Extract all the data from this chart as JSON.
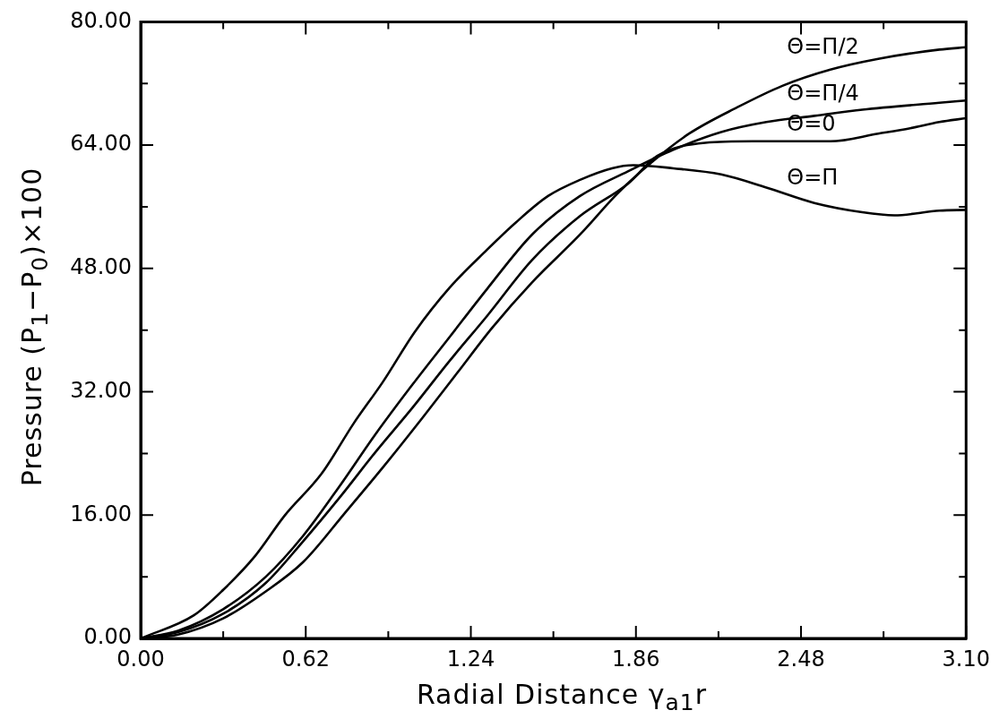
{
  "chart_data": {
    "type": "line",
    "xlabel": "Radial Distance γ$_{a1}$r",
    "ylabel": "Pressure (P$_{1}$−P$_{0}$)×100",
    "xlim": [
      0,
      3.1
    ],
    "ylim": [
      0,
      80
    ],
    "xticks": [
      {
        "value": 0,
        "label": "0.00"
      },
      {
        "value": 0.31,
        "label": null
      },
      {
        "value": 0.62,
        "label": "0.62"
      },
      {
        "value": 0.93,
        "label": null
      },
      {
        "value": 1.24,
        "label": "1.24"
      },
      {
        "value": 1.55,
        "label": null
      },
      {
        "value": 1.86,
        "label": "1.86"
      },
      {
        "value": 2.17,
        "label": null
      },
      {
        "value": 2.48,
        "label": "2.48"
      },
      {
        "value": 2.79,
        "label": null
      },
      {
        "value": 3.1,
        "label": "3.10"
      }
    ],
    "yticks": [
      {
        "value": 0,
        "label": "0.00"
      },
      {
        "value": 8,
        "label": null
      },
      {
        "value": 16,
        "label": "16.00"
      },
      {
        "value": 24,
        "label": null
      },
      {
        "value": 32,
        "label": "32.00"
      },
      {
        "value": 40,
        "label": null
      },
      {
        "value": 48,
        "label": "48.00"
      },
      {
        "value": 56,
        "label": null
      },
      {
        "value": 64,
        "label": "64.00"
      },
      {
        "value": 72,
        "label": null
      },
      {
        "value": 80,
        "label": "80.00"
      }
    ],
    "grid": false,
    "legend": "top right",
    "marker": "none",
    "line_style": "solid",
    "series": [
      {
        "name": "Θ=Π/2",
        "color": "#000000",
        "x": [
          0,
          0.14,
          0.31,
          0.47,
          0.61,
          0.77,
          0.91,
          1.06,
          1.19,
          1.32,
          1.47,
          1.65,
          1.79,
          1.92,
          2.06,
          2.24,
          2.41,
          2.59,
          2.77,
          3.0,
          3.1
        ],
        "values": [
          0,
          0.5,
          2.6,
          6.1,
          9.9,
          16.4,
          22.2,
          28.7,
          34.5,
          40.3,
          46.2,
          52.4,
          57.7,
          61.8,
          65.5,
          68.9,
          71.7,
          73.8,
          75.2,
          76.4,
          76.7
        ]
      },
      {
        "name": "Θ=Π/4",
        "color": "#000000",
        "x": [
          0,
          0.14,
          0.31,
          0.47,
          0.61,
          0.75,
          0.88,
          1.02,
          1.16,
          1.3,
          1.47,
          1.65,
          1.83,
          2.0,
          2.18,
          2.35,
          2.53,
          2.71,
          3.0,
          3.1
        ],
        "values": [
          0,
          1.0,
          3.8,
          8.0,
          13.3,
          19.9,
          26.4,
          32.9,
          39.1,
          45.3,
          52.4,
          57.4,
          60.6,
          63.4,
          65.7,
          67.0,
          67.8,
          68.6,
          69.5,
          69.8
        ]
      },
      {
        "name": "Θ=0",
        "color": "#000000",
        "x": [
          0,
          0.14,
          0.31,
          0.47,
          0.61,
          0.75,
          0.88,
          1.02,
          1.16,
          1.3,
          1.47,
          1.65,
          1.83,
          1.94,
          2.12,
          2.3,
          2.47,
          2.59,
          2.77,
          2.89,
          3.0,
          3.1
        ],
        "values": [
          0,
          0.8,
          3.2,
          7.2,
          12.6,
          18.4,
          24.1,
          29.9,
          36.0,
          41.8,
          49.1,
          54.8,
          59.0,
          62.6,
          64.3,
          64.5,
          64.5,
          64.5,
          65.5,
          66.2,
          67.0,
          67.5
        ]
      },
      {
        "name": "Θ=Π",
        "color": "#000000",
        "x": [
          0,
          0.2,
          0.31,
          0.43,
          0.54,
          0.68,
          0.8,
          0.91,
          1.03,
          1.16,
          1.3,
          1.41,
          1.53,
          1.65,
          1.77,
          1.85,
          2.0,
          2.18,
          2.35,
          2.53,
          2.71,
          2.83,
          3.0,
          3.1
        ],
        "values": [
          0,
          3.0,
          6.3,
          10.7,
          15.9,
          21.4,
          27.9,
          33.3,
          39.8,
          45.5,
          50.4,
          54.0,
          57.4,
          59.5,
          61.0,
          61.4,
          61.0,
          60.2,
          58.5,
          56.5,
          55.3,
          54.9,
          55.5,
          55.6
        ]
      }
    ]
  }
}
